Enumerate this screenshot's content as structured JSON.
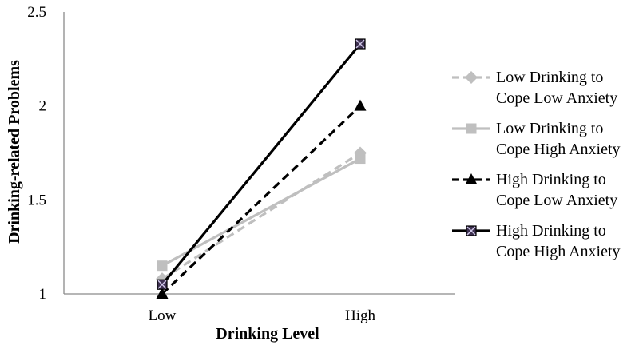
{
  "chart_data": {
    "type": "line",
    "categories": [
      "Low",
      "High"
    ],
    "xlabel": "Drinking Level",
    "ylabel": "Drinking-related Problems",
    "ylim": [
      1,
      2.5
    ],
    "yticks": [
      "1",
      "1.5",
      "2",
      "2.5"
    ],
    "grid": false,
    "legend_position": "right",
    "series": [
      {
        "name_lines": [
          "Low Drinking to",
          "Cope Low Anxiety"
        ],
        "values": [
          1.08,
          1.75
        ],
        "color": "#bfbfbf",
        "dash": "dashed",
        "marker": "diamond"
      },
      {
        "name_lines": [
          "Low Drinking to",
          "Cope High Anxiety"
        ],
        "values": [
          1.15,
          1.72
        ],
        "color": "#bfbfbf",
        "dash": "solid",
        "marker": "square"
      },
      {
        "name_lines": [
          "High Drinking to",
          "Cope Low Anxiety"
        ],
        "values": [
          1.0,
          2.0
        ],
        "color": "#000000",
        "dash": "dashed",
        "marker": "triangle"
      },
      {
        "name_lines": [
          "High Drinking to",
          "Cope High Anxiety"
        ],
        "values": [
          1.05,
          2.33
        ],
        "color": "#000000",
        "dash": "solid",
        "marker": "x-square",
        "marker_fill": "#3d3050"
      }
    ]
  }
}
